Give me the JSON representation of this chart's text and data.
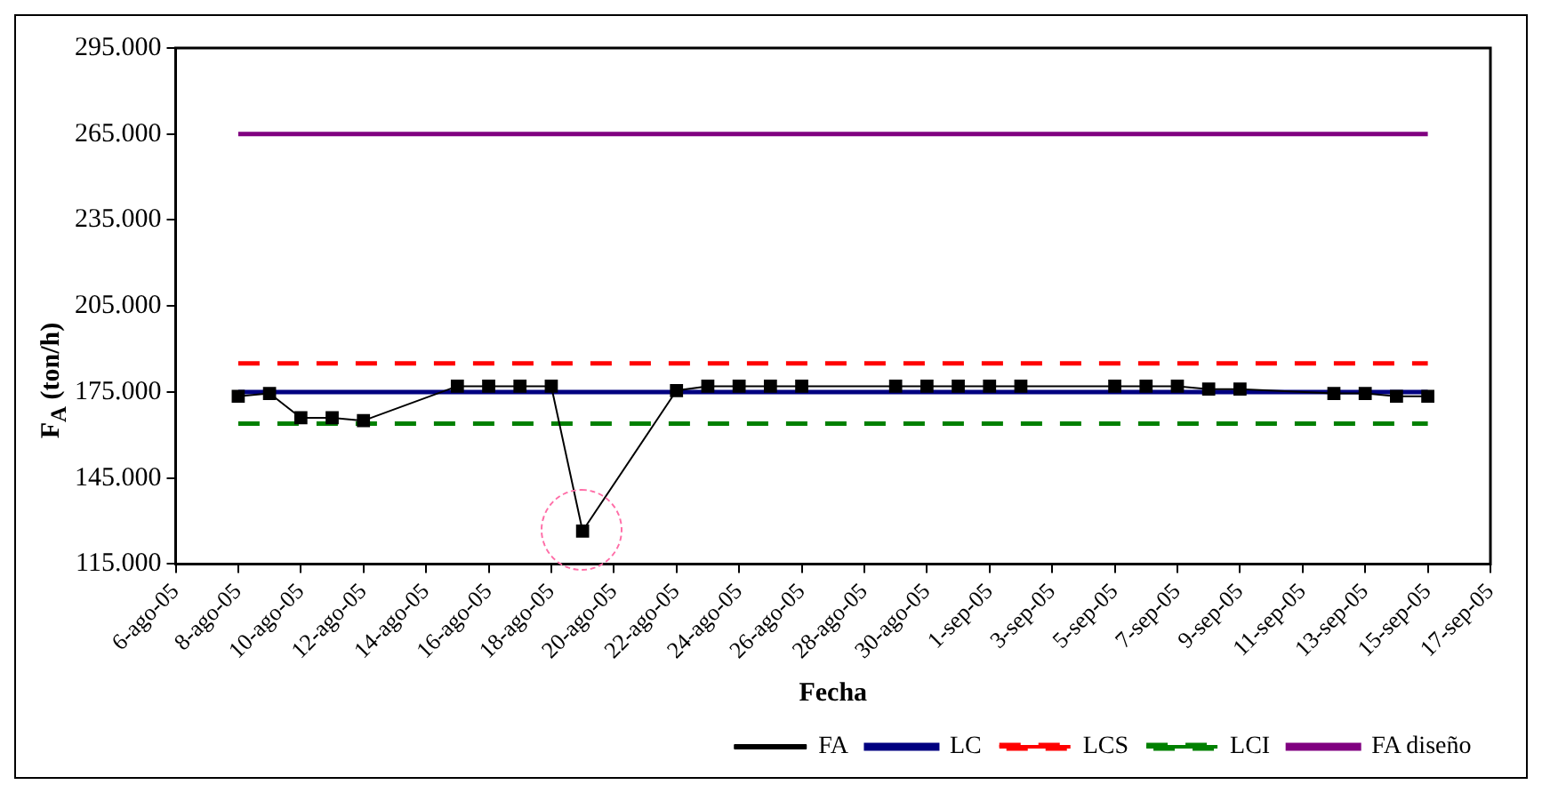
{
  "chart_data": {
    "type": "line",
    "xlabel": "Fecha",
    "ylabel": "F$_{A}$ (ton/h)",
    "xlim": [
      "--08-06",
      "--09-17"
    ],
    "xticks": [
      {
        "value": "--08-06",
        "label": "6-ago-05"
      },
      {
        "value": "--08-08",
        "label": "8-ago-05"
      },
      {
        "value": "--08-10",
        "label": "10-ago-05"
      },
      {
        "value": "--08-12",
        "label": "12-ago-05"
      },
      {
        "value": "--08-14",
        "label": "14-ago-05"
      },
      {
        "value": "--08-16",
        "label": "16-ago-05"
      },
      {
        "value": "--08-18",
        "label": "18-ago-05"
      },
      {
        "value": "--08-20",
        "label": "20-ago-05"
      },
      {
        "value": "--08-22",
        "label": "22-ago-05"
      },
      {
        "value": "--08-24",
        "label": "24-ago-05"
      },
      {
        "value": "--08-26",
        "label": "26-ago-05"
      },
      {
        "value": "--08-28",
        "label": "28-ago-05"
      },
      {
        "value": "--08-30",
        "label": "30-ago-05"
      },
      {
        "value": "--09-01",
        "label": "1-sep-05"
      },
      {
        "value": "--09-03",
        "label": "3-sep-05"
      },
      {
        "value": "--09-05",
        "label": "5-sep-05"
      },
      {
        "value": "--09-07",
        "label": "7-sep-05"
      },
      {
        "value": "--09-09",
        "label": "9-sep-05"
      },
      {
        "value": "--09-11",
        "label": "11-sep-05"
      },
      {
        "value": "--09-13",
        "label": "13-sep-05"
      },
      {
        "value": "--09-15",
        "label": "15-sep-05"
      },
      {
        "value": "--09-17",
        "label": "17-sep-05"
      }
    ],
    "ylim": [
      115000,
      295000
    ],
    "yticks": [
      {
        "value": 115000,
        "label": "115.000"
      },
      {
        "value": 145000,
        "label": "145.000"
      },
      {
        "value": 175000,
        "label": "175.000"
      },
      {
        "value": 205000,
        "label": "205.000"
      },
      {
        "value": 235000,
        "label": "235.000"
      },
      {
        "value": 265000,
        "label": "265.000"
      },
      {
        "value": 295000,
        "label": "295.000"
      }
    ],
    "x": [
      "--08-08",
      "--08-09",
      "--08-10",
      "--08-11",
      "--08-12",
      "--08-15",
      "--08-16",
      "--08-17",
      "--08-18",
      "--08-19",
      "--08-22",
      "--08-23",
      "--08-24",
      "--08-25",
      "--08-26",
      "--08-29",
      "--08-30",
      "--08-31",
      "--09-01",
      "--09-02",
      "--09-05",
      "--09-06",
      "--09-07",
      "--09-08",
      "--09-09",
      "--09-12",
      "--09-13",
      "--09-14",
      "--09-15"
    ],
    "series": [
      {
        "name": "FA",
        "color": "#000000",
        "values": [
          173500,
          174500,
          166000,
          166000,
          165000,
          177000,
          177000,
          177000,
          177000,
          126500,
          175500,
          177000,
          177000,
          177000,
          177000,
          177000,
          177000,
          177000,
          177000,
          177000,
          177000,
          177000,
          177000,
          176000,
          176000,
          174500,
          174500,
          173500,
          173500
        ]
      }
    ],
    "ref_lines": [
      {
        "axis": "y",
        "value": 175000,
        "label": "LC",
        "color": "#000080",
        "line_style": "solid"
      },
      {
        "axis": "y",
        "value": 185000,
        "label": "LCS",
        "color": "#ff0000",
        "line_style": "dashed"
      },
      {
        "axis": "y",
        "value": 164000,
        "label": "LCI",
        "color": "#008000",
        "line_style": "dashed"
      },
      {
        "axis": "y",
        "value": 265000,
        "label": "FA diseño",
        "color": "#800080",
        "line_style": "solid"
      }
    ],
    "marker": "square",
    "line_style": "solid",
    "grid": false,
    "legend": "bottom"
  }
}
